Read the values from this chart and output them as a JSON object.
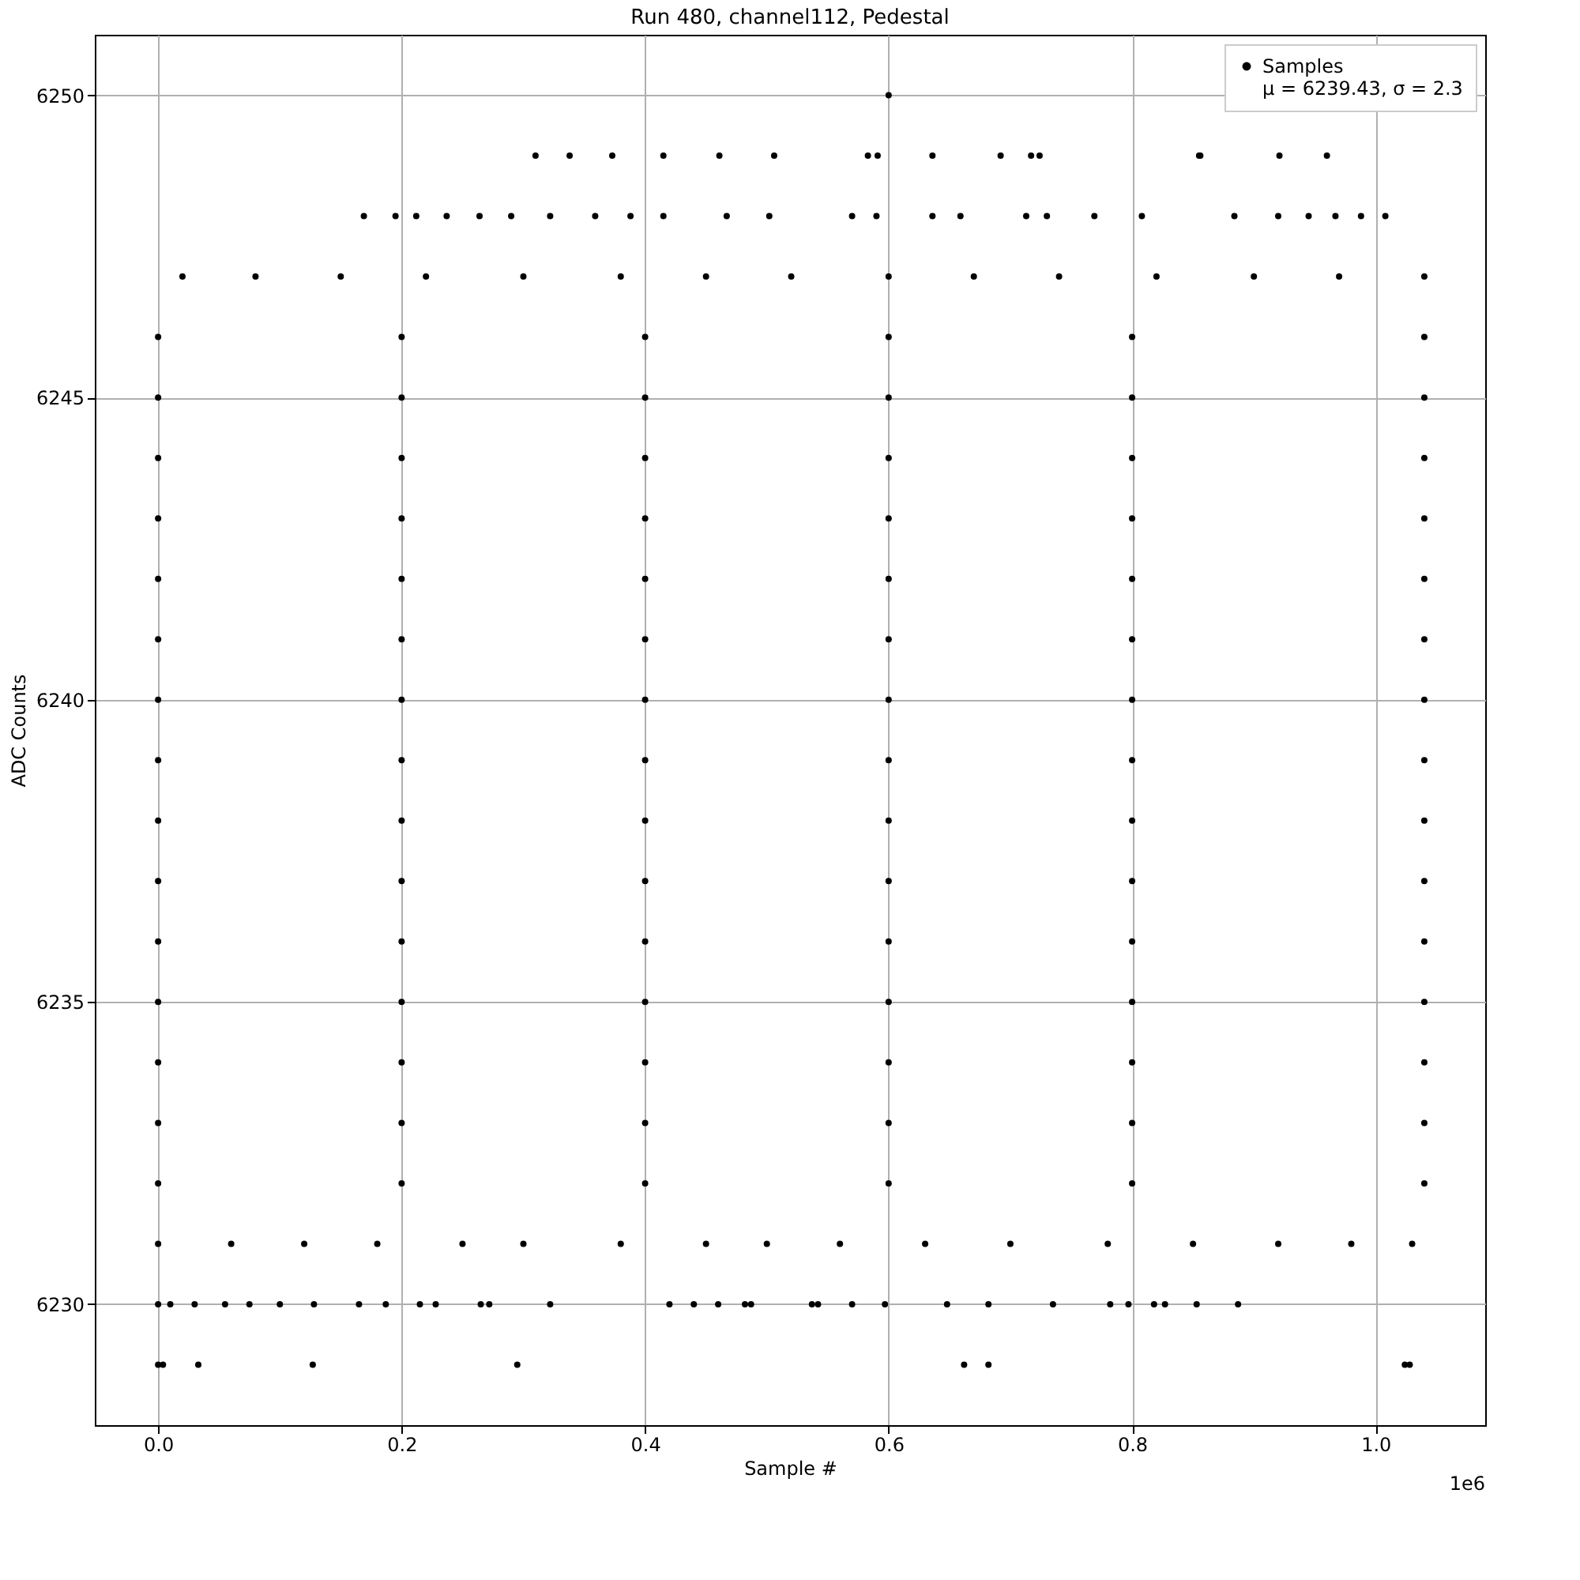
{
  "chart_data": {
    "type": "scatter",
    "title": "Run 480, channel112, Pedestal",
    "xlabel": "Sample #",
    "ylabel": "ADC Counts",
    "xlim": [
      -0.052,
      1.09
    ],
    "ylim": [
      6228,
      6251
    ],
    "xticks": [
      {
        "value": 0,
        "label": "0.0"
      },
      0.2,
      0.4,
      0.6,
      0.8,
      {
        "value": 1,
        "label": "1.0"
      }
    ],
    "yticks": [
      6230,
      6235,
      6240,
      6245,
      6250
    ],
    "grid": true,
    "legend": "top right",
    "marker": "circle",
    "annotations": [
      "μ = 6239.43, σ = 2.3",
      "1e6"
    ],
    "series": [
      {
        "name": "Samples",
        "color": "#000000",
        "x": [
          0,
          0.004,
          0.033,
          0.127,
          0.295,
          0.662,
          0.682,
          1.024,
          1.028,
          0,
          0.01,
          0.03,
          0.055,
          0.075,
          0.1,
          0.128,
          0.165,
          0.187,
          0.215,
          0.228,
          0.265,
          0.272,
          0.322,
          0.42,
          0.44,
          0.46,
          0.482,
          0.487,
          0.537,
          0.542,
          0.57,
          0.597,
          0.648,
          0.682,
          0.735,
          0.782,
          0.797,
          0.818,
          0.827,
          0.853,
          0.887,
          0,
          0.06,
          0.12,
          0.18,
          0.25,
          0.3,
          0.38,
          0.45,
          0.5,
          0.56,
          0.63,
          0.7,
          0.78,
          0.85,
          0.92,
          0.98,
          1.03,
          0,
          0.2,
          0.4,
          0.6,
          0.8,
          1.04,
          0,
          0.2,
          0.4,
          0.6,
          0.8,
          1.04,
          0,
          0.2,
          0.4,
          0.6,
          0.8,
          1.04,
          0,
          0.2,
          0.4,
          0.6,
          0.8,
          1.04,
          0,
          0.2,
          0.4,
          0.6,
          0.8,
          1.04,
          0,
          0.2,
          0.4,
          0.6,
          0.8,
          1.04,
          0,
          0.2,
          0.4,
          0.6,
          0.8,
          1.04,
          0,
          0.2,
          0.4,
          0.6,
          0.8,
          1.04,
          0,
          0.2,
          0.4,
          0.6,
          0.8,
          1.04,
          0,
          0.2,
          0.4,
          0.6,
          0.8,
          1.04,
          0,
          0.2,
          0.4,
          0.6,
          0.8,
          1.04,
          0,
          0.2,
          0.4,
          0.6,
          0.8,
          1.04,
          0,
          0.2,
          0.4,
          0.6,
          0.8,
          1.04,
          0,
          0.2,
          0.4,
          0.6,
          0.8,
          1.04,
          0,
          0.2,
          0.4,
          0.6,
          0.8,
          1.04,
          0.02,
          0.08,
          0.15,
          0.22,
          0.3,
          0.38,
          0.45,
          0.52,
          0.6,
          0.67,
          0.74,
          0.82,
          0.9,
          0.97,
          1.04,
          0.169,
          0.195,
          0.212,
          0.237,
          0.264,
          0.29,
          0.322,
          0.359,
          0.388,
          0.415,
          0.467,
          0.502,
          0.57,
          0.59,
          0.636,
          0.659,
          0.713,
          0.73,
          0.769,
          0.808,
          0.884,
          0.92,
          0.945,
          0.967,
          0.988,
          1.008,
          0.31,
          0.338,
          0.373,
          0.415,
          0.461,
          0.506,
          0.583,
          0.591,
          0.636,
          0.692,
          0.717,
          0.724,
          0.855,
          0.856,
          0.921,
          0.96,
          0.6
        ],
        "values": [
          6229,
          6229,
          6229,
          6229,
          6229,
          6229,
          6229,
          6229,
          6229,
          6230,
          6230,
          6230,
          6230,
          6230,
          6230,
          6230,
          6230,
          6230,
          6230,
          6230,
          6230,
          6230,
          6230,
          6230,
          6230,
          6230,
          6230,
          6230,
          6230,
          6230,
          6230,
          6230,
          6230,
          6230,
          6230,
          6230,
          6230,
          6230,
          6230,
          6230,
          6230,
          6231,
          6231,
          6231,
          6231,
          6231,
          6231,
          6231,
          6231,
          6231,
          6231,
          6231,
          6231,
          6231,
          6231,
          6231,
          6231,
          6231,
          6232,
          6232,
          6232,
          6232,
          6232,
          6232,
          6233,
          6233,
          6233,
          6233,
          6233,
          6233,
          6234,
          6234,
          6234,
          6234,
          6234,
          6234,
          6235,
          6235,
          6235,
          6235,
          6235,
          6235,
          6236,
          6236,
          6236,
          6236,
          6236,
          6236,
          6237,
          6237,
          6237,
          6237,
          6237,
          6237,
          6238,
          6238,
          6238,
          6238,
          6238,
          6238,
          6239,
          6239,
          6239,
          6239,
          6239,
          6239,
          6240,
          6240,
          6240,
          6240,
          6240,
          6240,
          6241,
          6241,
          6241,
          6241,
          6241,
          6241,
          6242,
          6242,
          6242,
          6242,
          6242,
          6242,
          6243,
          6243,
          6243,
          6243,
          6243,
          6243,
          6244,
          6244,
          6244,
          6244,
          6244,
          6244,
          6245,
          6245,
          6245,
          6245,
          6245,
          6245,
          6246,
          6246,
          6246,
          6246,
          6246,
          6246,
          6247,
          6247,
          6247,
          6247,
          6247,
          6247,
          6247,
          6247,
          6247,
          6247,
          6247,
          6247,
          6247,
          6247,
          6247,
          6248,
          6248,
          6248,
          6248,
          6248,
          6248,
          6248,
          6248,
          6248,
          6248,
          6248,
          6248,
          6248,
          6248,
          6248,
          6248,
          6248,
          6248,
          6248,
          6248,
          6248,
          6248,
          6248,
          6248,
          6248,
          6248,
          6249,
          6249,
          6249,
          6249,
          6249,
          6249,
          6249,
          6249,
          6249,
          6249,
          6249,
          6249,
          6249,
          6249,
          6249,
          6249,
          6250
        ]
      }
    ]
  }
}
